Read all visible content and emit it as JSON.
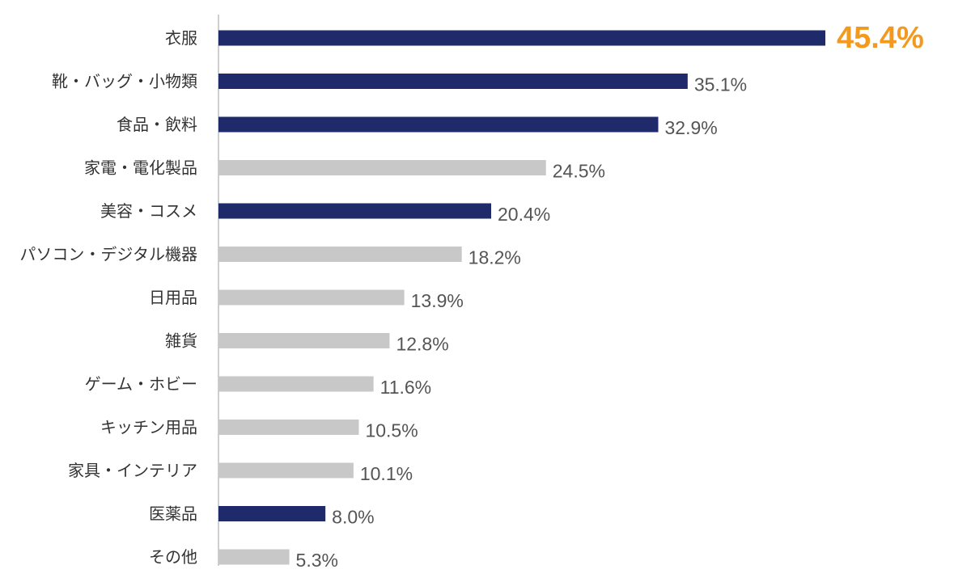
{
  "chart_data": {
    "type": "bar",
    "orientation": "horizontal",
    "categories": [
      "衣服",
      "靴・バッグ・小物類",
      "食品・飲料",
      "家電・電化製品",
      "美容・コスメ",
      "パソコン・デジタル機器",
      "日用品",
      "雑貨",
      "ゲーム・ホビー",
      "キッチン用品",
      "家具・インテリア",
      "医薬品",
      "その他"
    ],
    "values": [
      45.4,
      35.1,
      32.9,
      24.5,
      20.4,
      18.2,
      13.9,
      12.8,
      11.6,
      10.5,
      10.1,
      8.0,
      5.3
    ],
    "value_labels": [
      "45.4%",
      "35.1%",
      "32.9%",
      "24.5%",
      "20.4%",
      "18.2%",
      "13.9%",
      "12.8%",
      "11.6%",
      "10.5%",
      "10.1%",
      "8.0%",
      "5.3%"
    ],
    "highlighted": [
      true,
      true,
      true,
      false,
      true,
      false,
      false,
      false,
      false,
      false,
      false,
      true,
      false
    ],
    "xlim": [
      0,
      45.4
    ],
    "title": "",
    "xlabel": "",
    "ylabel": "",
    "grid": false,
    "legend": "none",
    "colors": {
      "highlight": "#1f2a6b",
      "normal": "#c8c8c8",
      "top_label": "#f39a1e",
      "axis": "#bfbfbf"
    }
  }
}
